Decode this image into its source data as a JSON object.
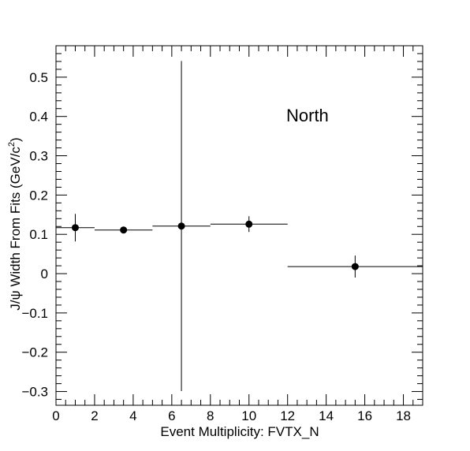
{
  "chart_data": {
    "type": "scatter",
    "title": "",
    "annotation": "North",
    "xlabel": "Event Multiplicity: FVTX_N",
    "ylabel_main": "J/ψ Width From Fits (GeV/c",
    "ylabel_sup": "2",
    "ylabel_close": ")",
    "xlim": [
      0,
      19
    ],
    "ylim": [
      -0.335,
      0.58
    ],
    "x_major_ticks": [
      0,
      2,
      4,
      6,
      8,
      10,
      12,
      14,
      16,
      18
    ],
    "x_tick_labels": [
      "0",
      "2",
      "4",
      "6",
      "8",
      "10",
      "12",
      "14",
      "16",
      "18"
    ],
    "y_major_ticks": [
      -0.3,
      -0.2,
      -0.1,
      0,
      0.1,
      0.2,
      0.3,
      0.4,
      0.5
    ],
    "y_tick_labels": [
      "−0.3",
      "−0.2",
      "−0.1",
      "0",
      "0.1",
      "0.2",
      "0.3",
      "0.4",
      "0.5"
    ],
    "grid": false,
    "points": [
      {
        "x": 1.0,
        "y": 0.117,
        "xlow": 0,
        "xhigh": 2,
        "yerr_low": 0.035,
        "yerr_high": 0.035
      },
      {
        "x": 3.5,
        "y": 0.111,
        "xlow": 2,
        "xhigh": 5,
        "yerr_low": 0.004,
        "yerr_high": 0.004
      },
      {
        "x": 6.5,
        "y": 0.121,
        "xlow": 5,
        "xhigh": 8,
        "yerr_low": 0.42,
        "yerr_high": 0.42
      },
      {
        "x": 10.0,
        "y": 0.126,
        "xlow": 8,
        "xhigh": 12,
        "yerr_low": 0.02,
        "yerr_high": 0.02
      },
      {
        "x": 15.5,
        "y": 0.018,
        "xlow": 12,
        "xhigh": 19,
        "yerr_low": 0.028,
        "yerr_high": 0.028
      }
    ]
  }
}
